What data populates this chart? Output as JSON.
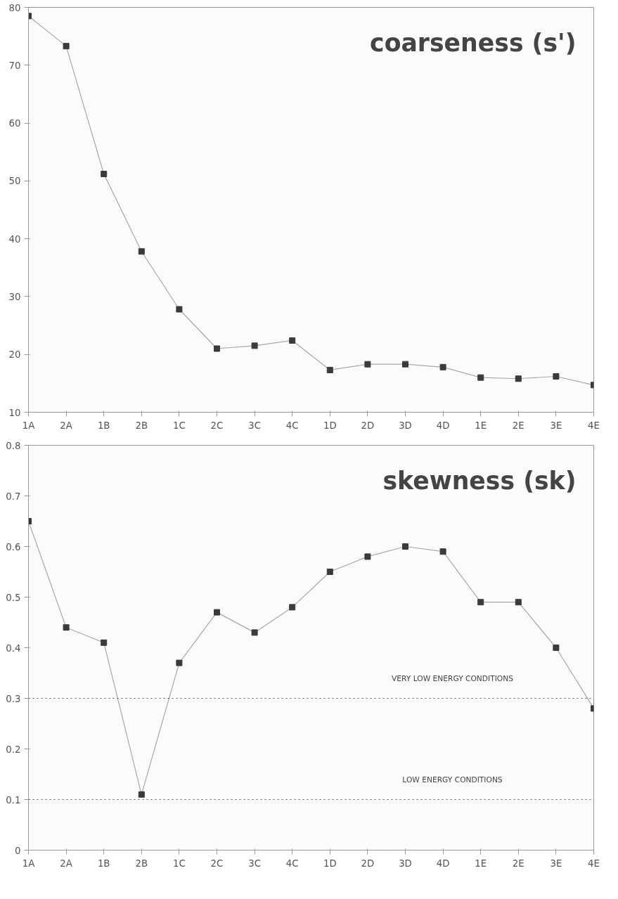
{
  "chart_data": [
    {
      "type": "line",
      "title": "coarseness (s')",
      "categories": [
        "1A",
        "2A",
        "1B",
        "2B",
        "1C",
        "2C",
        "3C",
        "4C",
        "1D",
        "2D",
        "3D",
        "4D",
        "1E",
        "2E",
        "3E",
        "4E"
      ],
      "series": [
        {
          "color": "#3a3a3a",
          "values": [
            78.5,
            73.3,
            51.2,
            37.8,
            27.8,
            21.0,
            21.5,
            22.4,
            17.3,
            18.3,
            18.3,
            17.8,
            16.0,
            15.8,
            16.2,
            14.7
          ]
        }
      ],
      "ylim": [
        10,
        80
      ],
      "yticks": [
        10,
        20,
        30,
        40,
        50,
        60,
        70,
        80
      ],
      "grid": false,
      "marker": "square",
      "line_style": "solid"
    },
    {
      "type": "line",
      "title": "skewness (sk)",
      "categories": [
        "1A",
        "2A",
        "1B",
        "2B",
        "1C",
        "2C",
        "3C",
        "4C",
        "1D",
        "2D",
        "3D",
        "4D",
        "1E",
        "2E",
        "3E",
        "4E"
      ],
      "series": [
        {
          "color": "#3a3a3a",
          "values": [
            0.65,
            0.44,
            0.41,
            0.11,
            0.37,
            0.47,
            0.43,
            0.48,
            0.55,
            0.58,
            0.6,
            0.59,
            0.49,
            0.49,
            0.4,
            0.28
          ]
        }
      ],
      "ylim": [
        0,
        0.8
      ],
      "yticks": [
        0,
        0.1,
        0.2,
        0.3,
        0.4,
        0.5,
        0.6,
        0.7,
        0.8
      ],
      "grid": false,
      "marker": "square",
      "line_style": "solid",
      "ref_lines": [
        {
          "axis": "y",
          "value": 0.3,
          "label": "VERY LOW ENERGY CONDITIONS",
          "color": "#555555",
          "line_style": "dotted"
        },
        {
          "axis": "y",
          "value": 0.1,
          "label": "LOW ENERGY CONDITIONS",
          "color": "#555555",
          "line_style": "dotted"
        }
      ]
    }
  ]
}
